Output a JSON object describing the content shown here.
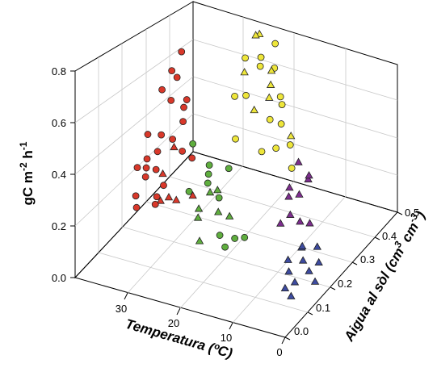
{
  "chart_data": {
    "type": "scatter",
    "projection": "3d",
    "title": "",
    "zlabel": {
      "main": "gC m",
      "sup1": "-2",
      "mid": " h",
      "sup2": "-1"
    },
    "xlabel": "Temperatura (ºC)",
    "ylabel": {
      "p1": "Aigua al sòl (cm",
      "sup1": "3",
      "p2": "  cm",
      "sup2": "-3",
      "p3": ")"
    },
    "xlim": [
      0,
      40
    ],
    "ylim": [
      0,
      0.5
    ],
    "zlim": [
      0,
      0.8
    ],
    "xticks": [
      "30",
      "20",
      "10",
      "0"
    ],
    "yticks": [
      "0.0",
      "0.1",
      "0.2",
      "0.3",
      "0.4",
      "0.5"
    ],
    "zticks": [
      "0.0",
      "0.2",
      "0.4",
      "0.6",
      "0.8"
    ],
    "grid": true,
    "legend": "none",
    "series": [
      {
        "color": "#d9382a",
        "points": [
          {
            "x": 37,
            "y": 0.2,
            "z": 0.14,
            "m": "circle"
          },
          {
            "x": 36,
            "y": 0.22,
            "z": 0.2,
            "m": "circle"
          },
          {
            "x": 35,
            "y": 0.2,
            "z": 0.26,
            "m": "circle"
          },
          {
            "x": 34,
            "y": 0.18,
            "z": 0.32,
            "m": "circle"
          },
          {
            "x": 34,
            "y": 0.24,
            "z": 0.1,
            "m": "triangle"
          },
          {
            "x": 33,
            "y": 0.22,
            "z": 0.38,
            "m": "circle"
          },
          {
            "x": 33,
            "y": 0.16,
            "z": 0.44,
            "m": "circle"
          },
          {
            "x": 32,
            "y": 0.24,
            "z": 0.5,
            "m": "circle"
          },
          {
            "x": 32,
            "y": 0.2,
            "z": 0.58,
            "m": "circle"
          },
          {
            "x": 31,
            "y": 0.22,
            "z": 0.64,
            "m": "circle"
          },
          {
            "x": 31,
            "y": 0.18,
            "z": 0.28,
            "m": "triangle"
          },
          {
            "x": 30,
            "y": 0.24,
            "z": 0.7,
            "m": "circle"
          },
          {
            "x": 30,
            "y": 0.2,
            "z": 0.4,
            "m": "circle"
          },
          {
            "x": 29,
            "y": 0.22,
            "z": 0.34,
            "m": "circle"
          },
          {
            "x": 29,
            "y": 0.16,
            "z": 0.22,
            "m": "triangle"
          },
          {
            "x": 28,
            "y": 0.2,
            "z": 0.48,
            "m": "circle"
          },
          {
            "x": 28,
            "y": 0.24,
            "z": 0.3,
            "m": "circle"
          },
          {
            "x": 27,
            "y": 0.18,
            "z": 0.56,
            "m": "circle"
          },
          {
            "x": 27,
            "y": 0.22,
            "z": 0.18,
            "m": "triangle"
          },
          {
            "x": 36,
            "y": 0.18,
            "z": 0.12,
            "m": "circle"
          },
          {
            "x": 35,
            "y": 0.24,
            "z": 0.08,
            "m": "circle"
          },
          {
            "x": 33,
            "y": 0.2,
            "z": 0.16,
            "m": "circle"
          },
          {
            "x": 31,
            "y": 0.24,
            "z": 0.12,
            "m": "triangle"
          },
          {
            "x": 30,
            "y": 0.16,
            "z": 0.26,
            "m": "circle"
          },
          {
            "x": 29,
            "y": 0.24,
            "z": 0.52,
            "m": "circle"
          },
          {
            "x": 32,
            "y": 0.18,
            "z": 0.36,
            "m": "circle"
          },
          {
            "x": 34,
            "y": 0.22,
            "z": 0.24,
            "m": "circle"
          },
          {
            "x": 35,
            "y": 0.16,
            "z": 0.3,
            "m": "circle"
          },
          {
            "x": 28,
            "y": 0.16,
            "z": 0.42,
            "m": "triangle"
          },
          {
            "x": 30,
            "y": 0.22,
            "z": 0.62,
            "m": "circle"
          }
        ]
      },
      {
        "color": "#5fae3e",
        "points": [
          {
            "x": 26,
            "y": 0.22,
            "z": 0.1,
            "m": "triangle"
          },
          {
            "x": 25,
            "y": 0.2,
            "z": 0.16,
            "m": "triangle"
          },
          {
            "x": 25,
            "y": 0.24,
            "z": 0.22,
            "m": "circle"
          },
          {
            "x": 24,
            "y": 0.22,
            "z": 0.28,
            "m": "circle"
          },
          {
            "x": 24,
            "y": 0.18,
            "z": 0.06,
            "m": "triangle"
          },
          {
            "x": 23,
            "y": 0.2,
            "z": 0.34,
            "m": "circle"
          },
          {
            "x": 23,
            "y": 0.24,
            "z": 0.12,
            "m": "triangle"
          },
          {
            "x": 22,
            "y": 0.22,
            "z": 0.2,
            "m": "circle"
          },
          {
            "x": 22,
            "y": 0.18,
            "z": 0.26,
            "m": "triangle"
          },
          {
            "x": 21,
            "y": 0.2,
            "z": 0.08,
            "m": "circle"
          },
          {
            "x": 21,
            "y": 0.24,
            "z": 0.3,
            "m": "circle"
          },
          {
            "x": 20,
            "y": 0.22,
            "z": 0.14,
            "m": "triangle"
          },
          {
            "x": 27,
            "y": 0.22,
            "z": 0.38,
            "m": "circle"
          },
          {
            "x": 26,
            "y": 0.18,
            "z": 0.24,
            "m": "circle"
          },
          {
            "x": 24,
            "y": 0.26,
            "z": 0.18,
            "m": "triangle"
          },
          {
            "x": 20,
            "y": 0.2,
            "z": 0.04,
            "m": "circle"
          },
          {
            "x": 19,
            "y": 0.22,
            "z": 0.06,
            "m": "circle"
          },
          {
            "x": 18,
            "y": 0.24,
            "z": 0.05,
            "m": "circle"
          }
        ]
      },
      {
        "color": "#eee63a",
        "points": [
          {
            "x": 25,
            "y": 0.36,
            "z": 0.44,
            "m": "circle"
          },
          {
            "x": 24,
            "y": 0.38,
            "z": 0.52,
            "m": "triangle"
          },
          {
            "x": 23,
            "y": 0.36,
            "z": 0.6,
            "m": "circle"
          },
          {
            "x": 22,
            "y": 0.4,
            "z": 0.66,
            "m": "triangle"
          },
          {
            "x": 22,
            "y": 0.34,
            "z": 0.48,
            "m": "circle"
          },
          {
            "x": 21,
            "y": 0.38,
            "z": 0.56,
            "m": "circle"
          },
          {
            "x": 21,
            "y": 0.42,
            "z": 0.4,
            "m": "triangle"
          },
          {
            "x": 20,
            "y": 0.36,
            "z": 0.62,
            "m": "circle"
          },
          {
            "x": 20,
            "y": 0.4,
            "z": 0.34,
            "m": "circle"
          },
          {
            "x": 19,
            "y": 0.38,
            "z": 0.5,
            "m": "triangle"
          },
          {
            "x": 19,
            "y": 0.34,
            "z": 0.28,
            "m": "circle"
          },
          {
            "x": 18,
            "y": 0.4,
            "z": 0.44,
            "m": "circle"
          },
          {
            "x": 18,
            "y": 0.36,
            "z": 0.58,
            "m": "triangle"
          },
          {
            "x": 17,
            "y": 0.38,
            "z": 0.36,
            "m": "circle"
          },
          {
            "x": 17,
            "y": 0.42,
            "z": 0.24,
            "m": "circle"
          },
          {
            "x": 16,
            "y": 0.4,
            "z": 0.3,
            "m": "triangle"
          },
          {
            "x": 16,
            "y": 0.36,
            "z": 0.46,
            "m": "circle"
          },
          {
            "x": 15,
            "y": 0.38,
            "z": 0.2,
            "m": "circle"
          },
          {
            "x": 23,
            "y": 0.4,
            "z": 0.36,
            "m": "triangle"
          },
          {
            "x": 24,
            "y": 0.34,
            "z": 0.3,
            "m": "circle"
          },
          {
            "x": 20,
            "y": 0.42,
            "z": 0.52,
            "m": "circle"
          },
          {
            "x": 21,
            "y": 0.36,
            "z": 0.7,
            "m": "triangle"
          },
          {
            "x": 19,
            "y": 0.4,
            "z": 0.64,
            "m": "circle"
          },
          {
            "x": 18,
            "y": 0.38,
            "z": 0.26,
            "m": "circle"
          }
        ]
      },
      {
        "color": "#7d2d8e",
        "points": [
          {
            "x": 12,
            "y": 0.34,
            "z": 0.28,
            "m": "triangle"
          },
          {
            "x": 12,
            "y": 0.3,
            "z": 0.22,
            "m": "triangle"
          },
          {
            "x": 11,
            "y": 0.32,
            "z": 0.18,
            "m": "triangle"
          },
          {
            "x": 11,
            "y": 0.28,
            "z": 0.14,
            "m": "triangle"
          },
          {
            "x": 10,
            "y": 0.3,
            "z": 0.1,
            "m": "triangle"
          },
          {
            "x": 10,
            "y": 0.34,
            "z": 0.24,
            "m": "triangle"
          },
          {
            "x": 13,
            "y": 0.32,
            "z": 0.16,
            "m": "triangle"
          },
          {
            "x": 9,
            "y": 0.32,
            "z": 0.08,
            "m": "triangle"
          },
          {
            "x": 11,
            "y": 0.36,
            "z": 0.2,
            "m": "triangle"
          },
          {
            "x": 12,
            "y": 0.26,
            "z": 0.12,
            "m": "triangle"
          }
        ]
      },
      {
        "color": "#3d4ba0",
        "points": [
          {
            "x": 8,
            "y": 0.2,
            "z": 0.06,
            "m": "triangle"
          },
          {
            "x": 7,
            "y": 0.18,
            "z": 0.04,
            "m": "triangle"
          },
          {
            "x": 6,
            "y": 0.22,
            "z": 0.05,
            "m": "triangle"
          },
          {
            "x": 5,
            "y": 0.16,
            "z": 0.03,
            "m": "triangle"
          },
          {
            "x": 4,
            "y": 0.2,
            "z": 0.04,
            "m": "triangle"
          },
          {
            "x": 7,
            "y": 0.24,
            "z": 0.08,
            "m": "triangle"
          },
          {
            "x": 3,
            "y": 0.22,
            "z": 0.06,
            "m": "triangle"
          },
          {
            "x": 6,
            "y": 0.14,
            "z": 0.02,
            "m": "triangle"
          },
          {
            "x": 5,
            "y": 0.26,
            "z": 0.07,
            "m": "triangle"
          },
          {
            "x": 2,
            "y": 0.18,
            "z": 0.03,
            "m": "triangle"
          },
          {
            "x": 4,
            "y": 0.12,
            "z": 0.02,
            "m": "triangle"
          },
          {
            "x": 8,
            "y": 0.26,
            "z": 0.05,
            "m": "triangle"
          }
        ]
      }
    ]
  }
}
